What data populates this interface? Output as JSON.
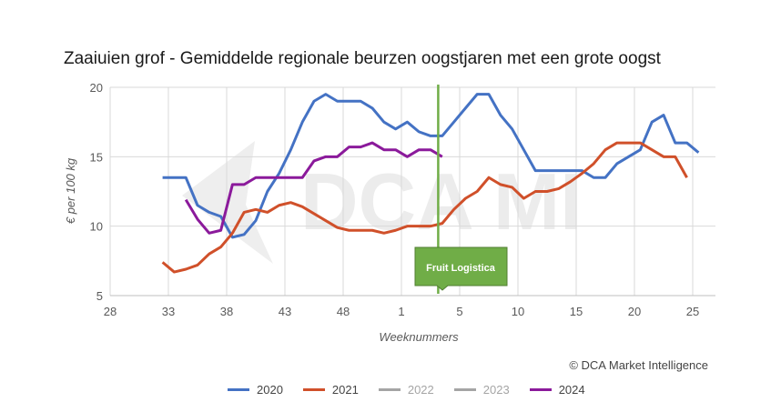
{
  "chart_data": {
    "type": "line",
    "title": "Zaaiuien grof - Gemiddelde regionale beurzen oogstjaren met een grote oogst",
    "xlabel": "Weeknummers",
    "ylabel": "€ per 100 kg",
    "x_tick_labels": [
      "28",
      "33",
      "38",
      "43",
      "48",
      "1",
      "5",
      "10",
      "15",
      "20",
      "25"
    ],
    "y_ticks": [
      5,
      10,
      15,
      20
    ],
    "ylim": [
      5,
      20
    ],
    "grid": true,
    "legend_placement": "bottom",
    "annotation": {
      "label": "Fruit Logistica",
      "week_index": 28.0,
      "color": "#70ad47"
    },
    "series": [
      {
        "name": "2020",
        "color": "#4472c4",
        "start_index": 4.5,
        "values": [
          13.5,
          13.5,
          13.5,
          11.5,
          11,
          10.7,
          9.2,
          9.4,
          10.4,
          12.5,
          13.8,
          15.5,
          17.5,
          19,
          19.5,
          19,
          19,
          19,
          18.5,
          17.5,
          17,
          17.5,
          16.8,
          16.5,
          16.5,
          17.5,
          18.5,
          19.5,
          19.5,
          18,
          17,
          15.5,
          14,
          14,
          14,
          14,
          14,
          13.5,
          13.5,
          14.5,
          15,
          15.5,
          17.5,
          18,
          16,
          16,
          15.3
        ]
      },
      {
        "name": "2021",
        "color": "#d0502a",
        "start_index": 4.5,
        "values": [
          7.4,
          6.7,
          6.9,
          7.2,
          8,
          8.5,
          9.5,
          11,
          11.2,
          11,
          11.5,
          11.7,
          11.4,
          10.9,
          10.4,
          9.9,
          9.7,
          9.7,
          9.7,
          9.5,
          9.7,
          10,
          10,
          10,
          10.2,
          11.2,
          12,
          12.5,
          13.5,
          13,
          12.8,
          12,
          12.5,
          12.5,
          12.7,
          13.2,
          13.8,
          14.5,
          15.5,
          16,
          16,
          16,
          15.5,
          15,
          15,
          13.5
        ]
      },
      {
        "name": "2022",
        "color": "#a5a5a5",
        "start_index": 4.5,
        "values": []
      },
      {
        "name": "2023",
        "color": "#a5a5a5",
        "start_index": 4.5,
        "values": []
      },
      {
        "name": "2024",
        "color": "#8b1a9b",
        "start_index": 6.5,
        "values": [
          11.9,
          10.5,
          9.5,
          9.7,
          13,
          13,
          13.5,
          13.5,
          13.5,
          13.5,
          13.5,
          14.7,
          15,
          15,
          15.7,
          15.7,
          16,
          15.5,
          15.5,
          15,
          15.5,
          15.5,
          15
        ]
      }
    ]
  },
  "watermark": "DCA MI",
  "copyright": "© DCA Market Intelligence"
}
